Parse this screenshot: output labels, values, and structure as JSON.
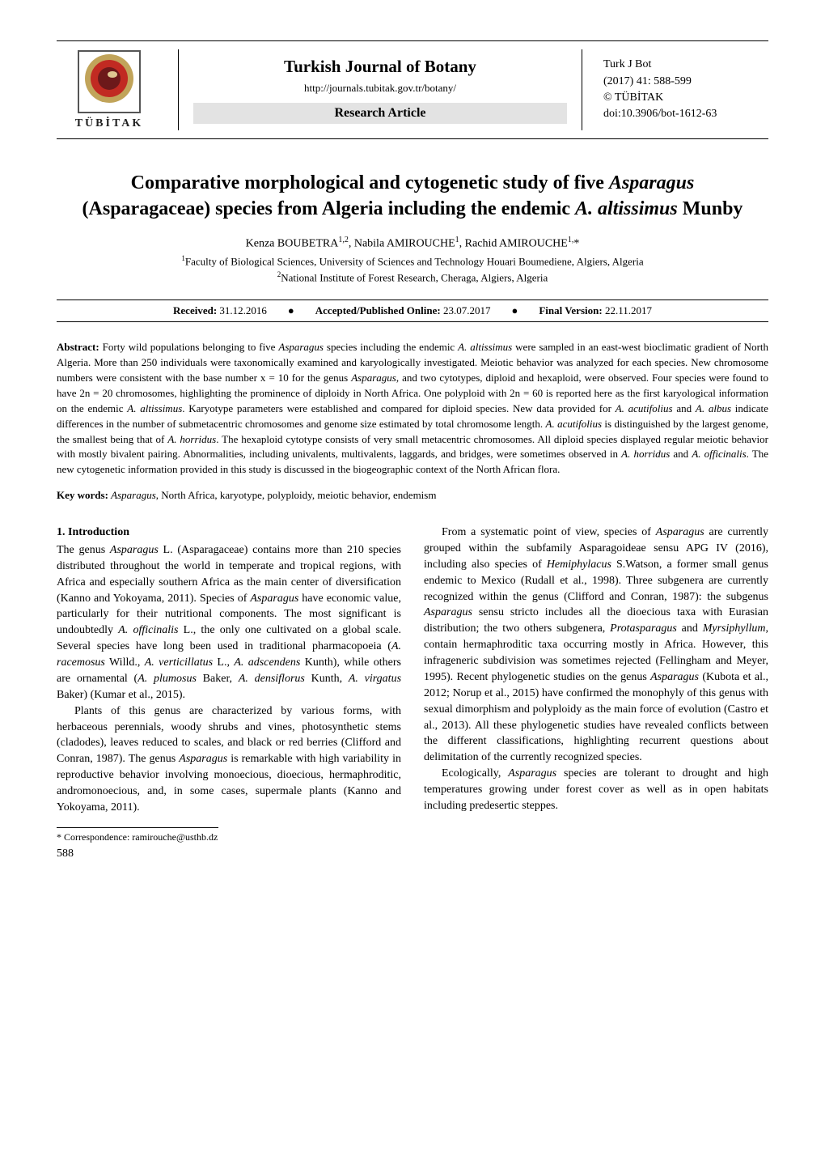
{
  "header": {
    "logo_text": "TÜBİTAK",
    "logo_colors": {
      "outer_ring": "#c1a45a",
      "mid_ring": "#c12a22",
      "inner_disc": "#6d191a",
      "inner_highlight": "#f2e6a8"
    },
    "journal_title": "Turkish Journal of Botany",
    "journal_url": "http://journals.tubitak.gov.tr/botany/",
    "article_type": "Research Article",
    "meta_journal": "Turk J Bot",
    "meta_issue": "(2017) 41: 588-599",
    "meta_publisher": "© TÜBİTAK",
    "meta_doi": "doi:10.3906/bot-1612-63"
  },
  "title": {
    "pre": "Comparative morphological and cytogenetic study of five ",
    "ital1": "Asparagus",
    "mid": " (Asparagaceae) species from Algeria including the endemic ",
    "ital2": "A. altissimus",
    "post": " Munby"
  },
  "authors_html": "Kenza BOUBETRA<sup>1,2</sup>, Nabila AMIROUCHE<sup>1</sup>, Rachid AMIROUCHE<sup>1,</sup>*",
  "affiliations": [
    "<sup>1</sup>Faculty of Biological Sciences, University of Sciences and Technology Houari Boumediene, Algiers, Algeria",
    "<sup>2</sup>National Institute of Forest Research, Cheraga, Algiers, Algeria"
  ],
  "dates": {
    "received_label": "Received:",
    "received_value": "31.12.2016",
    "accepted_label": "Accepted/Published Online:",
    "accepted_value": "23.07.2017",
    "final_label": "Final Version:",
    "final_value": "22.11.2017",
    "bullet": "●"
  },
  "abstract_label": "Abstract:",
  "abstract_body": "Forty wild populations belonging to five <span class=\"ital\">Asparagus</span> species including the endemic <span class=\"ital\">A. altissimus</span> were sampled in an east-west bioclimatic gradient of North Algeria. More than 250 individuals were taxonomically examined and karyologically investigated. Meiotic behavior was analyzed for each species. New chromosome numbers were consistent with the base number x = 10 for the genus <span class=\"ital\">Asparagus</span>, and two cytotypes, diploid and hexaploid, were observed. Four species were found to have 2n = 20 chromosomes, highlighting the prominence of diploidy in North Africa. One polyploid with 2n = 60 is reported here as the first karyological information on the endemic <span class=\"ital\">A. altissimus</span>. Karyotype parameters were established and compared for diploid species. New data provided for <span class=\"ital\">A. acutifolius</span> and <span class=\"ital\">A. albus</span> indicate differences in the number of submetacentric chromosomes and genome size estimated by total chromosome length. <span class=\"ital\">A. acutifolius</span> is distinguished by the largest genome, the smallest being that of <span class=\"ital\">A. horridus</span>. The hexaploid cytotype consists of very small metacentric chromosomes. All diploid species displayed regular meiotic behavior with mostly bivalent pairing. Abnormalities, including univalents, multivalents, laggards, and bridges, were sometimes observed in <span class=\"ital\">A. horridus</span> and <span class=\"ital\">A. officinalis</span>. The new cytogenetic information provided in this study is discussed in the biogeographic context of the North African flora.",
  "keywords_label": "Key words:",
  "keywords_body": "<span class=\"ital\">Asparagus</span>, North Africa, karyotype, polyploidy, meiotic behavior, endemism",
  "section_head": "1. Introduction",
  "col1": [
    "The genus <span class=\"ital\">Asparagus</span> L. (Asparagaceae) contains more than 210 species distributed throughout the world in temperate and tropical regions, with Africa and especially southern Africa as the main center of diversification (Kanno and Yokoyama, 2011). Species of <span class=\"ital\">Asparagus</span> have economic value, particularly for their nutritional components. The most significant is undoubtedly <span class=\"ital\">A. officinalis</span> L., the only one cultivated on a global scale. Several species have long been used in traditional pharmacopoeia (<span class=\"ital\">A. racemosus</span> Willd., <span class=\"ital\">A. verticillatus</span> L., <span class=\"ital\">A. adscendens</span> Kunth), while others are ornamental (<span class=\"ital\">A. plumosus</span> Baker, <span class=\"ital\">A. densiflorus</span> Kunth, <span class=\"ital\">A. virgatus</span> Baker) (Kumar et al., 2015).",
    "Plants of this genus are characterized by various forms, with herbaceous perennials, woody shrubs and vines, photosynthetic stems (cladodes), leaves reduced to scales, and black or red berries (Clifford and Conran, 1987). The genus <span class=\"ital\">Asparagus</span> is remarkable with high variability in reproductive behavior involving monoecious, dioecious, hermaphroditic, andromonoecious, and, in some cases, supermale plants (Kanno and Yokoyama, 2011)."
  ],
  "col2": [
    "From a systematic point of view, species of <span class=\"ital\">Asparagus</span> are currently grouped within the subfamily Asparagoideae sensu APG IV (2016), including also species of <span class=\"ital\">Hemiphylacus</span> S.Watson, a former small genus endemic to Mexico (Rudall et al., 1998). Three subgenera are currently recognized within the genus (Clifford and Conran, 1987): the subgenus <span class=\"ital\">Asparagus</span> sensu stricto includes all the dioecious taxa with Eurasian distribution; the two others subgenera, <span class=\"ital\">Protasparagus</span> and <span class=\"ital\">Myrsiphyllum</span>, contain hermaphroditic taxa occurring mostly in Africa. However, this infrageneric subdivision was sometimes rejected (Fellingham and Meyer, 1995). Recent phylogenetic studies on the genus <span class=\"ital\">Asparagus</span> (Kubota et al., 2012; Norup et al., 2015) have confirmed the monophyly of this genus with sexual dimorphism and polyploidy as the main force of evolution (Castro et al., 2013). All these phylogenetic studies have revealed conflicts between the different classifications, highlighting recurrent questions about delimitation of the currently recognized species.",
    "Ecologically, <span class=\"ital\">Asparagus</span> species are tolerant to drought and high temperatures growing under forest cover as well as in open habitats including predesertic steppes."
  ],
  "footnote": "* Correspondence: ramirouche@usthb.dz",
  "page_number": "588",
  "style": {
    "page_background": "#ffffff",
    "text_color": "#000000",
    "rule_color": "#000000",
    "article_type_bg": "#e3e3e3",
    "body_font": "Minion Pro / Times serif",
    "title_fontsize_pt": 17,
    "body_fontsize_pt": 10,
    "abstract_fontsize_pt": 9.5,
    "line_height": 1.42
  }
}
